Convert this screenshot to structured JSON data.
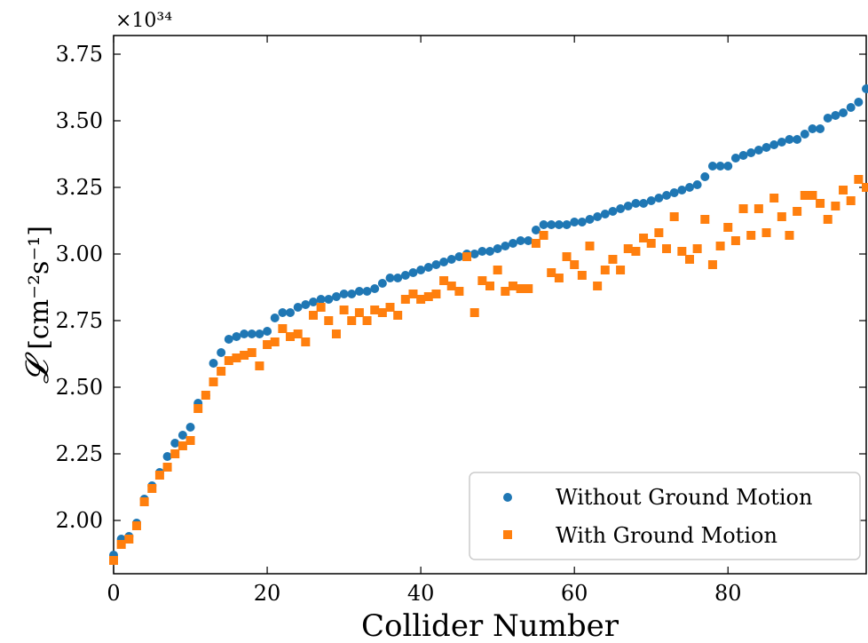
{
  "chart_data": {
    "type": "scatter",
    "xlabel": "Collider Number",
    "ylabel_symbol": "𝓛",
    "ylabel_unit": "[cm⁻²s⁻¹]",
    "y_offset_label": "×10³⁴",
    "xlim": [
      0,
      98
    ],
    "ylim": [
      1.8,
      3.82
    ],
    "xticks": [
      0,
      20,
      40,
      60,
      80
    ],
    "yticks": [
      2.0,
      2.25,
      2.5,
      2.75,
      3.0,
      3.25,
      3.5,
      3.75
    ],
    "xtick_labels": [
      "0",
      "20",
      "40",
      "60",
      "80"
    ],
    "ytick_labels": [
      "2.00",
      "2.25",
      "2.50",
      "2.75",
      "3.00",
      "3.25",
      "3.50",
      "3.75"
    ],
    "legend_position": "lower-right",
    "series": [
      {
        "name": "Without Ground Motion",
        "marker": "circle",
        "color": "#1f77b4",
        "x": [
          0,
          1,
          2,
          3,
          4,
          5,
          6,
          7,
          8,
          9,
          10,
          11,
          12,
          13,
          14,
          15,
          16,
          17,
          18,
          19,
          20,
          21,
          22,
          23,
          24,
          25,
          26,
          27,
          28,
          29,
          30,
          31,
          32,
          33,
          34,
          35,
          36,
          37,
          38,
          39,
          40,
          41,
          42,
          43,
          44,
          45,
          46,
          47,
          48,
          49,
          50,
          51,
          52,
          53,
          54,
          55,
          56,
          57,
          58,
          59,
          60,
          61,
          62,
          63,
          64,
          65,
          66,
          67,
          68,
          69,
          70,
          71,
          72,
          73,
          74,
          75,
          76,
          77,
          78,
          79,
          80,
          81,
          82,
          83,
          84,
          85,
          86,
          87,
          88,
          89,
          90,
          91,
          92,
          93,
          94,
          95,
          96,
          97,
          98
        ],
        "values": [
          1.87,
          1.93,
          1.94,
          1.99,
          2.08,
          2.13,
          2.18,
          2.24,
          2.29,
          2.32,
          2.35,
          2.44,
          2.47,
          2.59,
          2.63,
          2.68,
          2.69,
          2.7,
          2.7,
          2.7,
          2.71,
          2.76,
          2.78,
          2.78,
          2.8,
          2.81,
          2.82,
          2.83,
          2.83,
          2.84,
          2.85,
          2.85,
          2.86,
          2.86,
          2.87,
          2.89,
          2.91,
          2.91,
          2.92,
          2.93,
          2.94,
          2.95,
          2.96,
          2.97,
          2.98,
          2.99,
          3.0,
          3.0,
          3.01,
          3.01,
          3.02,
          3.03,
          3.04,
          3.05,
          3.05,
          3.09,
          3.11,
          3.11,
          3.11,
          3.11,
          3.12,
          3.12,
          3.13,
          3.14,
          3.15,
          3.16,
          3.17,
          3.18,
          3.19,
          3.19,
          3.2,
          3.21,
          3.22,
          3.23,
          3.24,
          3.25,
          3.26,
          3.29,
          3.33,
          3.33,
          3.33,
          3.36,
          3.37,
          3.38,
          3.39,
          3.4,
          3.41,
          3.42,
          3.43,
          3.43,
          3.45,
          3.47,
          3.47,
          3.51,
          3.52,
          3.53,
          3.55,
          3.57,
          3.62
        ]
      },
      {
        "name": "With Ground Motion",
        "marker": "square",
        "color": "#ff7f0e",
        "x": [
          0,
          1,
          2,
          3,
          4,
          5,
          6,
          7,
          8,
          9,
          10,
          11,
          12,
          13,
          14,
          15,
          16,
          17,
          18,
          19,
          20,
          21,
          22,
          23,
          24,
          25,
          26,
          27,
          28,
          29,
          30,
          31,
          32,
          33,
          34,
          35,
          36,
          37,
          38,
          39,
          40,
          41,
          42,
          43,
          44,
          45,
          46,
          47,
          48,
          49,
          50,
          51,
          52,
          53,
          54,
          55,
          56,
          57,
          58,
          59,
          60,
          61,
          62,
          63,
          64,
          65,
          66,
          67,
          68,
          69,
          70,
          71,
          72,
          73,
          74,
          75,
          76,
          77,
          78,
          79,
          80,
          81,
          82,
          83,
          84,
          85,
          86,
          87,
          88,
          89,
          90,
          91,
          92,
          93,
          94,
          95,
          96,
          97,
          98
        ],
        "values": [
          1.85,
          1.91,
          1.93,
          1.98,
          2.07,
          2.12,
          2.17,
          2.2,
          2.25,
          2.28,
          2.3,
          2.42,
          2.47,
          2.52,
          2.56,
          2.6,
          2.61,
          2.62,
          2.63,
          2.58,
          2.66,
          2.67,
          2.72,
          2.69,
          2.7,
          2.67,
          2.77,
          2.8,
          2.75,
          2.7,
          2.79,
          2.75,
          2.78,
          2.75,
          2.79,
          2.78,
          2.8,
          2.77,
          2.83,
          2.85,
          2.83,
          2.84,
          2.85,
          2.9,
          2.88,
          2.86,
          2.99,
          2.78,
          2.9,
          2.88,
          2.94,
          2.86,
          2.88,
          2.87,
          2.87,
          3.04,
          3.07,
          2.93,
          2.91,
          2.99,
          2.96,
          2.92,
          3.03,
          2.88,
          2.94,
          2.98,
          2.94,
          3.02,
          3.01,
          3.06,
          3.04,
          3.08,
          3.02,
          3.14,
          3.01,
          2.98,
          3.02,
          3.13,
          2.96,
          3.03,
          3.1,
          3.05,
          3.17,
          3.07,
          3.17,
          3.08,
          3.21,
          3.14,
          3.07,
          3.16,
          3.22,
          3.22,
          3.19,
          3.13,
          3.18,
          3.24,
          3.2,
          3.28,
          3.25
        ]
      }
    ]
  }
}
